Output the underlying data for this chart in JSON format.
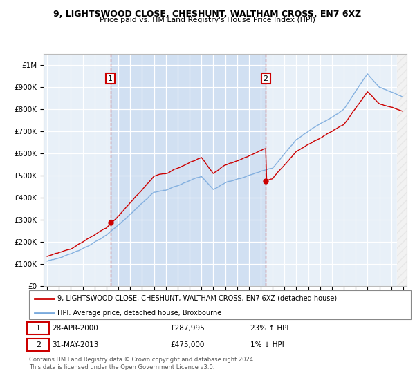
{
  "title": "9, LIGHTSWOOD CLOSE, CHESHUNT, WALTHAM CROSS, EN7 6XZ",
  "subtitle": "Price paid vs. HM Land Registry's House Price Index (HPI)",
  "legend_line1": "9, LIGHTSWOOD CLOSE, CHESHUNT, WALTHAM CROSS, EN7 6XZ (detached house)",
  "legend_line2": "HPI: Average price, detached house, Broxbourne",
  "annotation1_date": "28-APR-2000",
  "annotation1_price": "£287,995",
  "annotation1_hpi": "23% ↑ HPI",
  "annotation2_date": "31-MAY-2013",
  "annotation2_price": "£475,000",
  "annotation2_hpi": "1% ↓ HPI",
  "footer": "Contains HM Land Registry data © Crown copyright and database right 2024.\nThis data is licensed under the Open Government Licence v3.0.",
  "hpi_color": "#7aaadd",
  "price_color": "#cc0000",
  "sale1_x": 2000.33,
  "sale1_y": 287995,
  "sale2_x": 2013.42,
  "sale2_y": 475000,
  "ylim": [
    0,
    1050000
  ],
  "xlim": [
    1994.7,
    2025.3
  ],
  "plot_bg": "#e8f0f8",
  "shade_color": "#c8daf0",
  "hatch_color": "#cccccc"
}
